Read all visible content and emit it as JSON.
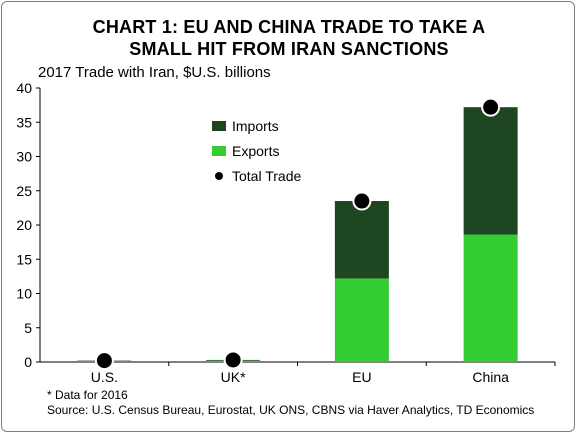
{
  "chart_data": {
    "type": "bar",
    "stacked": true,
    "title_line1": "CHART 1: EU AND CHINA TRADE TO TAKE A",
    "title_line2": "SMALL HIT FROM IRAN SANCTIONS",
    "subtitle": "2017 Trade with Iran, $U.S. billions",
    "categories": [
      "U.S.",
      "UK*",
      "EU",
      "China"
    ],
    "series": [
      {
        "name": "Exports",
        "values": [
          0.1,
          0.2,
          12.2,
          18.6
        ],
        "color": "#33cc33"
      },
      {
        "name": "Imports",
        "values": [
          0.1,
          0.1,
          11.3,
          18.6
        ],
        "color": "#1e4621"
      }
    ],
    "total_series": {
      "name": "Total Trade",
      "values": [
        0.2,
        0.3,
        23.5,
        37.2
      ],
      "marker": "black-dot"
    },
    "ylim": [
      0,
      40
    ],
    "yticks": [
      0,
      5,
      10,
      15,
      20,
      25,
      30,
      35,
      40
    ],
    "grid": false,
    "legend_position": "top-left-inside",
    "legend_order": [
      "Imports",
      "Exports",
      "Total Trade"
    ],
    "footnote": "* Data for 2016",
    "source": "Source: U.S. Census Bureau, Eurostat, UK ONS, CBNS via Haver Analytics, TD Economics"
  }
}
